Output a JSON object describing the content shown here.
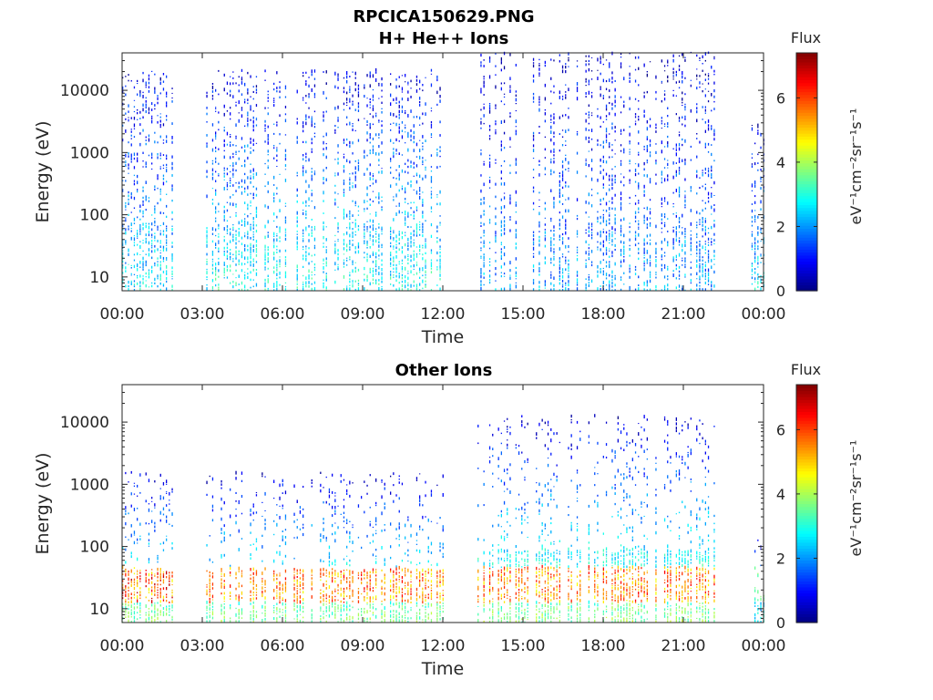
{
  "figure": {
    "title": "RPCICA150629.PNG"
  },
  "chart_data": [
    {
      "type": "heatmap",
      "title": "H+ He++ Ions",
      "xlabel": "Time",
      "ylabel": "Energy (eV)",
      "x_tick_labels": [
        "00:00",
        "03:00",
        "06:00",
        "09:00",
        "12:00",
        "15:00",
        "18:00",
        "21:00",
        "00:00"
      ],
      "x_ticks_hours": [
        0,
        3,
        6,
        9,
        12,
        15,
        18,
        21,
        24
      ],
      "xlim_hours": [
        0,
        24
      ],
      "y_scale": "log",
      "y_tick_labels": [
        "10",
        "100",
        "1000",
        "10000"
      ],
      "y_ticks": [
        10,
        100,
        1000,
        10000
      ],
      "ylim": [
        6,
        40000
      ],
      "colorbar": {
        "title": "Flux",
        "label": "eV⁻¹cm⁻²sr⁻¹s⁻¹",
        "ticks": [
          0,
          2,
          4,
          6
        ],
        "tick_labels": [
          "0",
          "2",
          "4",
          "6"
        ],
        "range": [
          0,
          7.4
        ],
        "colormap": "jet"
      },
      "data_gaps_hours": [
        [
          1.95,
          3.15
        ],
        [
          12.0,
          13.3
        ],
        [
          22.2,
          23.55
        ]
      ],
      "data_intervals": [
        {
          "start_hour": 0.0,
          "end_hour": 1.95,
          "energy_range": [
            6,
            20000
          ],
          "max_flux": 4.5,
          "typical_flux": 2.5
        },
        {
          "start_hour": 3.15,
          "end_hour": 12.0,
          "energy_range": [
            6,
            20000
          ],
          "max_flux": 5.0,
          "typical_flux": 2.8
        },
        {
          "start_hour": 13.3,
          "end_hour": 22.2,
          "energy_range": [
            6,
            40000
          ],
          "max_flux": 4.5,
          "typical_flux": 2.0
        },
        {
          "start_hour": 23.55,
          "end_hour": 24.0,
          "energy_range": [
            6,
            3000
          ],
          "max_flux": 3.5,
          "typical_flux": 2.5
        }
      ]
    },
    {
      "type": "heatmap",
      "title": "Other Ions",
      "xlabel": "Time",
      "ylabel": "Energy (eV)",
      "x_tick_labels": [
        "00:00",
        "03:00",
        "06:00",
        "09:00",
        "12:00",
        "15:00",
        "18:00",
        "21:00",
        "00:00"
      ],
      "x_ticks_hours": [
        0,
        3,
        6,
        9,
        12,
        15,
        18,
        21,
        24
      ],
      "xlim_hours": [
        0,
        24
      ],
      "y_scale": "log",
      "y_tick_labels": [
        "10",
        "100",
        "1000",
        "10000"
      ],
      "y_ticks": [
        10,
        100,
        1000,
        10000
      ],
      "ylim": [
        6,
        40000
      ],
      "colorbar": {
        "title": "Flux",
        "label": "eV⁻¹cm⁻²sr⁻¹s⁻¹",
        "ticks": [
          0,
          2,
          4,
          6
        ],
        "tick_labels": [
          "0",
          "2",
          "4",
          "6"
        ],
        "range": [
          0,
          7.4
        ],
        "colormap": "jet"
      },
      "data_gaps_hours": [
        [
          1.95,
          3.15
        ],
        [
          12.0,
          13.3
        ],
        [
          22.2,
          23.55
        ]
      ],
      "data_intervals": [
        {
          "start_hour": 0.0,
          "end_hour": 1.95,
          "energy_range": [
            6,
            1500
          ],
          "max_flux": 7.0,
          "typical_flux": 4.5
        },
        {
          "start_hour": 3.15,
          "end_hour": 12.0,
          "energy_range": [
            6,
            1500
          ],
          "max_flux": 6.5,
          "typical_flux": 4.5
        },
        {
          "start_hour": 13.3,
          "end_hour": 22.2,
          "energy_range": [
            6,
            12000
          ],
          "max_flux": 6.5,
          "typical_flux": 4.5
        },
        {
          "start_hour": 23.55,
          "end_hour": 24.0,
          "energy_range": [
            6,
            150
          ],
          "max_flux": 4.0,
          "typical_flux": 3.0
        }
      ]
    }
  ]
}
